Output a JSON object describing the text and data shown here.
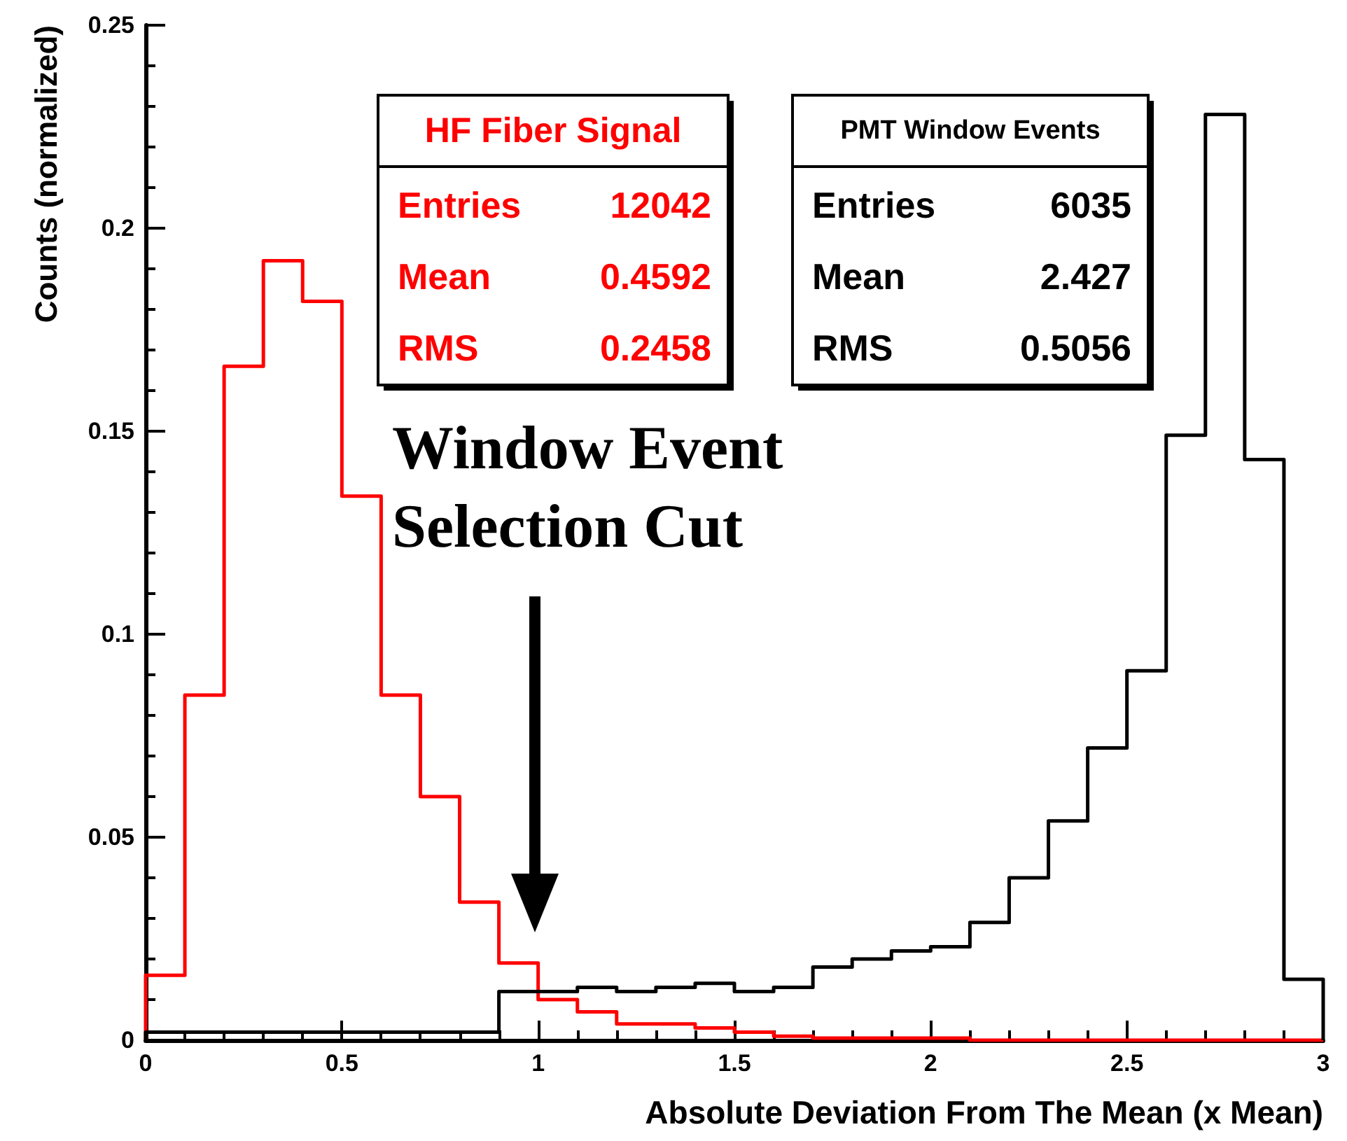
{
  "chart_data": {
    "type": "histogram",
    "xlabel": "Absolute Deviation From The Mean (x Mean)",
    "ylabel": "Counts (normalized)",
    "bins": [
      0,
      0.1,
      0.2,
      0.3,
      0.4,
      0.5,
      0.6,
      0.7,
      0.8,
      0.9,
      1,
      1.1,
      1.2,
      1.3,
      1.4,
      1.5,
      1.6,
      1.7,
      1.8,
      1.9,
      2,
      2.1,
      2.2,
      2.3,
      2.4,
      2.5,
      2.6,
      2.7,
      2.8,
      2.9,
      3
    ],
    "series": [
      {
        "name": "HF Fiber Signal",
        "color": "#ff0000",
        "values": [
          0.016,
          0.085,
          0.166,
          0.192,
          0.182,
          0.134,
          0.085,
          0.06,
          0.034,
          0.019,
          0.01,
          0.007,
          0.004,
          0.004,
          0.003,
          0.002,
          0.001,
          0.0005,
          0.0005,
          0.0005,
          0.0005,
          0,
          0,
          0,
          0,
          0,
          0,
          0,
          0,
          0
        ]
      },
      {
        "name": "PMT Window Events",
        "color": "#000000",
        "values": [
          0.002,
          0.002,
          0.002,
          0.002,
          0.002,
          0.002,
          0.002,
          0.002,
          0.002,
          0.012,
          0.012,
          0.013,
          0.012,
          0.013,
          0.014,
          0.012,
          0.013,
          0.018,
          0.02,
          0.022,
          0.023,
          0.029,
          0.04,
          0.054,
          0.072,
          0.091,
          0.149,
          0.228,
          0.143,
          0.015
        ]
      }
    ],
    "annotations": [
      "Entries 12042",
      "Mean 0.4592",
      "RMS 0.2458",
      "Entries 6035",
      "Mean 2.427",
      "RMS 0.5056",
      "Window Event\nSelection Cut"
    ],
    "xlim": [
      0,
      3
    ],
    "ylim": [
      0,
      0.25
    ],
    "xticks": [
      0,
      0.5,
      1,
      1.5,
      2,
      2.5,
      3
    ],
    "yticks": [
      0,
      0.05,
      0.1,
      0.15,
      0.2,
      0.25
    ],
    "grid": false,
    "legend": false
  }
}
